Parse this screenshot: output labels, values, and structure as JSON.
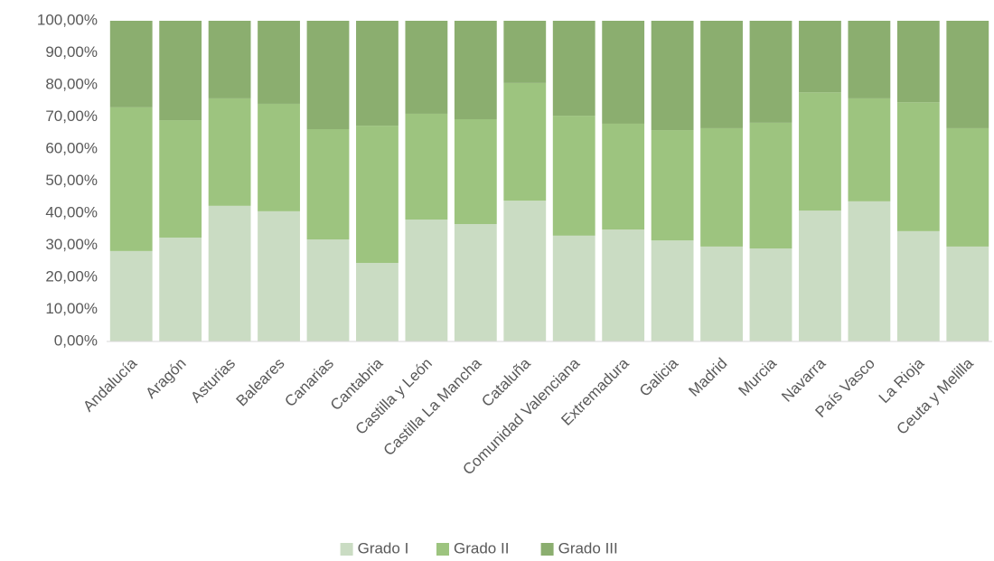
{
  "chart_data": {
    "type": "stacked_bar",
    "categories": [
      "Andalucía",
      "Aragón",
      "Asturias",
      "Baleares",
      "Canarias",
      "Cantabria",
      "Castilla y León",
      "Castilla La Mancha",
      "Cataluña",
      "Comunidad Valenciana",
      "Extremadura",
      "Galicia",
      "Madrid",
      "Murcia",
      "Navarra",
      "País Vasco",
      "La Rioja",
      "Ceuta y Melilla"
    ],
    "series": [
      {
        "name": "Grado I",
        "color": "#cadcc3",
        "values": [
          28.2,
          32.4,
          42.3,
          40.6,
          31.8,
          24.5,
          38.0,
          36.6,
          43.9,
          33.0,
          34.9,
          31.5,
          29.6,
          29.0,
          40.8,
          43.7,
          34.4,
          29.6
        ]
      },
      {
        "name": "Grado II",
        "color": "#9dc47f",
        "values": [
          44.8,
          36.6,
          33.5,
          33.5,
          34.4,
          42.8,
          33.0,
          32.7,
          36.7,
          37.4,
          33.0,
          34.4,
          36.9,
          39.2,
          36.9,
          32.1,
          40.2,
          36.9
        ]
      },
      {
        "name": "Grado III",
        "color": "#8bae6f",
        "values": [
          27.0,
          31.0,
          24.2,
          25.9,
          33.8,
          32.7,
          29.0,
          30.7,
          19.4,
          29.6,
          32.1,
          34.1,
          33.5,
          31.8,
          22.3,
          24.2,
          25.4,
          33.5
        ]
      }
    ],
    "ylim": [
      0,
      100
    ],
    "yticks": [
      {
        "value": 0,
        "label": "0,00%"
      },
      {
        "value": 10,
        "label": "10,00%"
      },
      {
        "value": 20,
        "label": "20,00%"
      },
      {
        "value": 30,
        "label": "30,00%"
      },
      {
        "value": 40,
        "label": "40,00%"
      },
      {
        "value": 50,
        "label": "50,00%"
      },
      {
        "value": 60,
        "label": "60,00%"
      },
      {
        "value": 70,
        "label": "70,00%"
      },
      {
        "value": 80,
        "label": "80,00%"
      },
      {
        "value": 90,
        "label": "90,00%"
      },
      {
        "value": 100,
        "label": "100,00%"
      }
    ],
    "legend": "bottom"
  }
}
